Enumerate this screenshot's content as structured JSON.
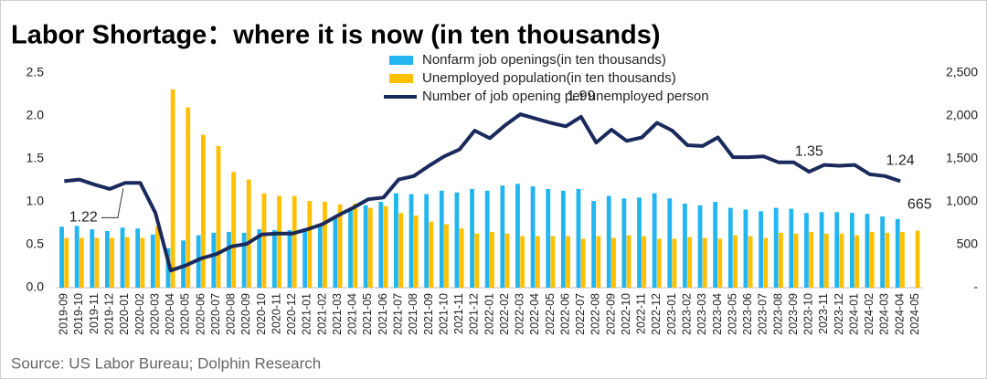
{
  "chart_data": {
    "type": "bar-line",
    "title": "Labor Shortage：where it is now (in ten thousands)",
    "source": "Source: US Labor Bureau; Dolphin Research",
    "categories": [
      "2019-09",
      "2019-10",
      "2019-11",
      "2019-12",
      "2020-01",
      "2020-02",
      "2020-03",
      "2020-04",
      "2020-05",
      "2020-06",
      "2020-07",
      "2020-08",
      "2020-09",
      "2020-10",
      "2020-11",
      "2020-12",
      "2021-01",
      "2021-02",
      "2021-03",
      "2021-04",
      "2021-05",
      "2021-06",
      "2021-07",
      "2021-08",
      "2021-09",
      "2021-10",
      "2021-11",
      "2021-12",
      "2022-01",
      "2022-02",
      "2022-03",
      "2022-04",
      "2022-05",
      "2022-06",
      "2022-07",
      "2022-08",
      "2022-09",
      "2022-10",
      "2022-11",
      "2022-12",
      "2023-01",
      "2023-02",
      "2023-03",
      "2023-04",
      "2023-05",
      "2023-06",
      "2023-07",
      "2023-08",
      "2023-09",
      "2023-10",
      "2023-11",
      "2023-12",
      "2024-01",
      "2024-02",
      "2024-03",
      "2024-04",
      "2024-05"
    ],
    "series": [
      {
        "name": "Nonfarm job openings(in ten thousands)",
        "kind": "bar",
        "axis": "y2",
        "color": "#23b5ef",
        "values": [
          710,
          720,
          680,
          660,
          700,
          690,
          620,
          460,
          550,
          610,
          640,
          650,
          640,
          680,
          670,
          670,
          690,
          740,
          810,
          910,
          960,
          1000,
          1100,
          1090,
          1090,
          1130,
          1110,
          1150,
          1130,
          1190,
          1210,
          1180,
          1150,
          1130,
          1150,
          1010,
          1070,
          1040,
          1050,
          1100,
          1040,
          980,
          960,
          1000,
          930,
          910,
          890,
          930,
          920,
          870,
          880,
          880,
          870,
          860,
          830,
          800,
          null
        ]
      },
      {
        "name": "Unemployed population(in ten thousands)",
        "kind": "bar",
        "axis": "y2",
        "color": "#ffc000",
        "values": [
          580,
          580,
          580,
          580,
          590,
          580,
          710,
          2310,
          2100,
          1780,
          1650,
          1350,
          1260,
          1100,
          1070,
          1070,
          1010,
          1000,
          970,
          980,
          930,
          950,
          870,
          840,
          770,
          740,
          690,
          630,
          650,
          630,
          600,
          600,
          600,
          600,
          570,
          600,
          580,
          610,
          600,
          570,
          570,
          590,
          580,
          570,
          610,
          600,
          580,
          640,
          630,
          650,
          630,
          630,
          610,
          650,
          640,
          650,
          665
        ],
        "value_labels": [
          null,
          null,
          null,
          null,
          null,
          null,
          null,
          null,
          null,
          null,
          null,
          null,
          null,
          null,
          null,
          null,
          null,
          null,
          null,
          null,
          null,
          null,
          null,
          null,
          null,
          null,
          null,
          null,
          null,
          null,
          null,
          null,
          null,
          null,
          null,
          null,
          null,
          null,
          null,
          null,
          null,
          null,
          null,
          null,
          null,
          null,
          null,
          null,
          null,
          null,
          null,
          null,
          null,
          null,
          null,
          null,
          "665"
        ]
      },
      {
        "name": "Number of job opening per unemployed person",
        "kind": "line",
        "axis": "y",
        "color": "#1b2a5c",
        "values": [
          1.24,
          1.26,
          1.2,
          1.15,
          1.22,
          1.22,
          0.87,
          0.2,
          0.26,
          0.34,
          0.39,
          0.48,
          0.51,
          0.62,
          0.63,
          0.63,
          0.68,
          0.74,
          0.84,
          0.93,
          1.03,
          1.05,
          1.26,
          1.3,
          1.42,
          1.53,
          1.61,
          1.83,
          1.74,
          1.89,
          2.02,
          1.97,
          1.92,
          1.88,
          1.99,
          1.69,
          1.84,
          1.71,
          1.75,
          1.92,
          1.83,
          1.66,
          1.65,
          1.75,
          1.52,
          1.52,
          1.53,
          1.46,
          1.46,
          1.35,
          1.43,
          1.42,
          1.43,
          1.32,
          1.3,
          1.24,
          null
        ],
        "value_labels": [
          null,
          null,
          null,
          null,
          "1.22",
          null,
          null,
          null,
          null,
          null,
          null,
          null,
          null,
          null,
          null,
          null,
          null,
          null,
          null,
          null,
          null,
          null,
          null,
          null,
          null,
          null,
          null,
          null,
          null,
          null,
          null,
          null,
          null,
          null,
          "1.99",
          null,
          null,
          null,
          null,
          null,
          null,
          null,
          null,
          null,
          null,
          null,
          null,
          null,
          null,
          "1.35",
          null,
          null,
          null,
          null,
          null,
          "1.24",
          null
        ]
      }
    ],
    "ylim": [
      0,
      2.5
    ],
    "yticks": [
      {
        "value": 0,
        "label": "0.0"
      },
      {
        "value": 0.5,
        "label": "0.5"
      },
      {
        "value": 1,
        "label": "1.0"
      },
      {
        "value": 1.5,
        "label": "1.5"
      },
      {
        "value": 2,
        "label": "2.0"
      },
      {
        "value": 2.5,
        "label": "2.5"
      }
    ],
    "y2lim": [
      0,
      2500
    ],
    "y2ticks": [
      {
        "value": 0,
        "label": "-"
      },
      500,
      {
        "value": 1000,
        "label": "1,000"
      },
      {
        "value": 1500,
        "label": "1,500"
      },
      {
        "value": 2000,
        "label": "2,000"
      },
      {
        "value": 2500,
        "label": "2,500"
      }
    ]
  }
}
